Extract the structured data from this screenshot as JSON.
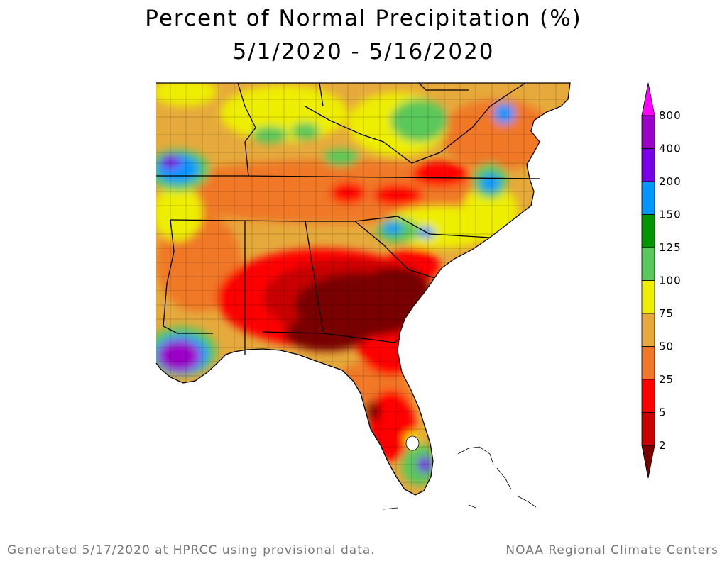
{
  "title": {
    "line1": "Percent of Normal Precipitation (%)",
    "line2": "5/1/2020 - 5/16/2020"
  },
  "legend": {
    "labels": [
      "800",
      "400",
      "200",
      "150",
      "125",
      "100",
      "75",
      "50",
      "25",
      "5",
      "2"
    ],
    "colors": [
      "#ff00ff",
      "#9b00c8",
      "#7800e6",
      "#0096ff",
      "#009600",
      "#5ac85a",
      "#eeee00",
      "#e6aa3c",
      "#f07828",
      "#ff0000",
      "#c80000",
      "#780000"
    ]
  },
  "footer": {
    "generated": "Generated 5/17/2020 at HPRCC using provisional data.",
    "source": "NOAA Regional Climate Centers"
  }
}
